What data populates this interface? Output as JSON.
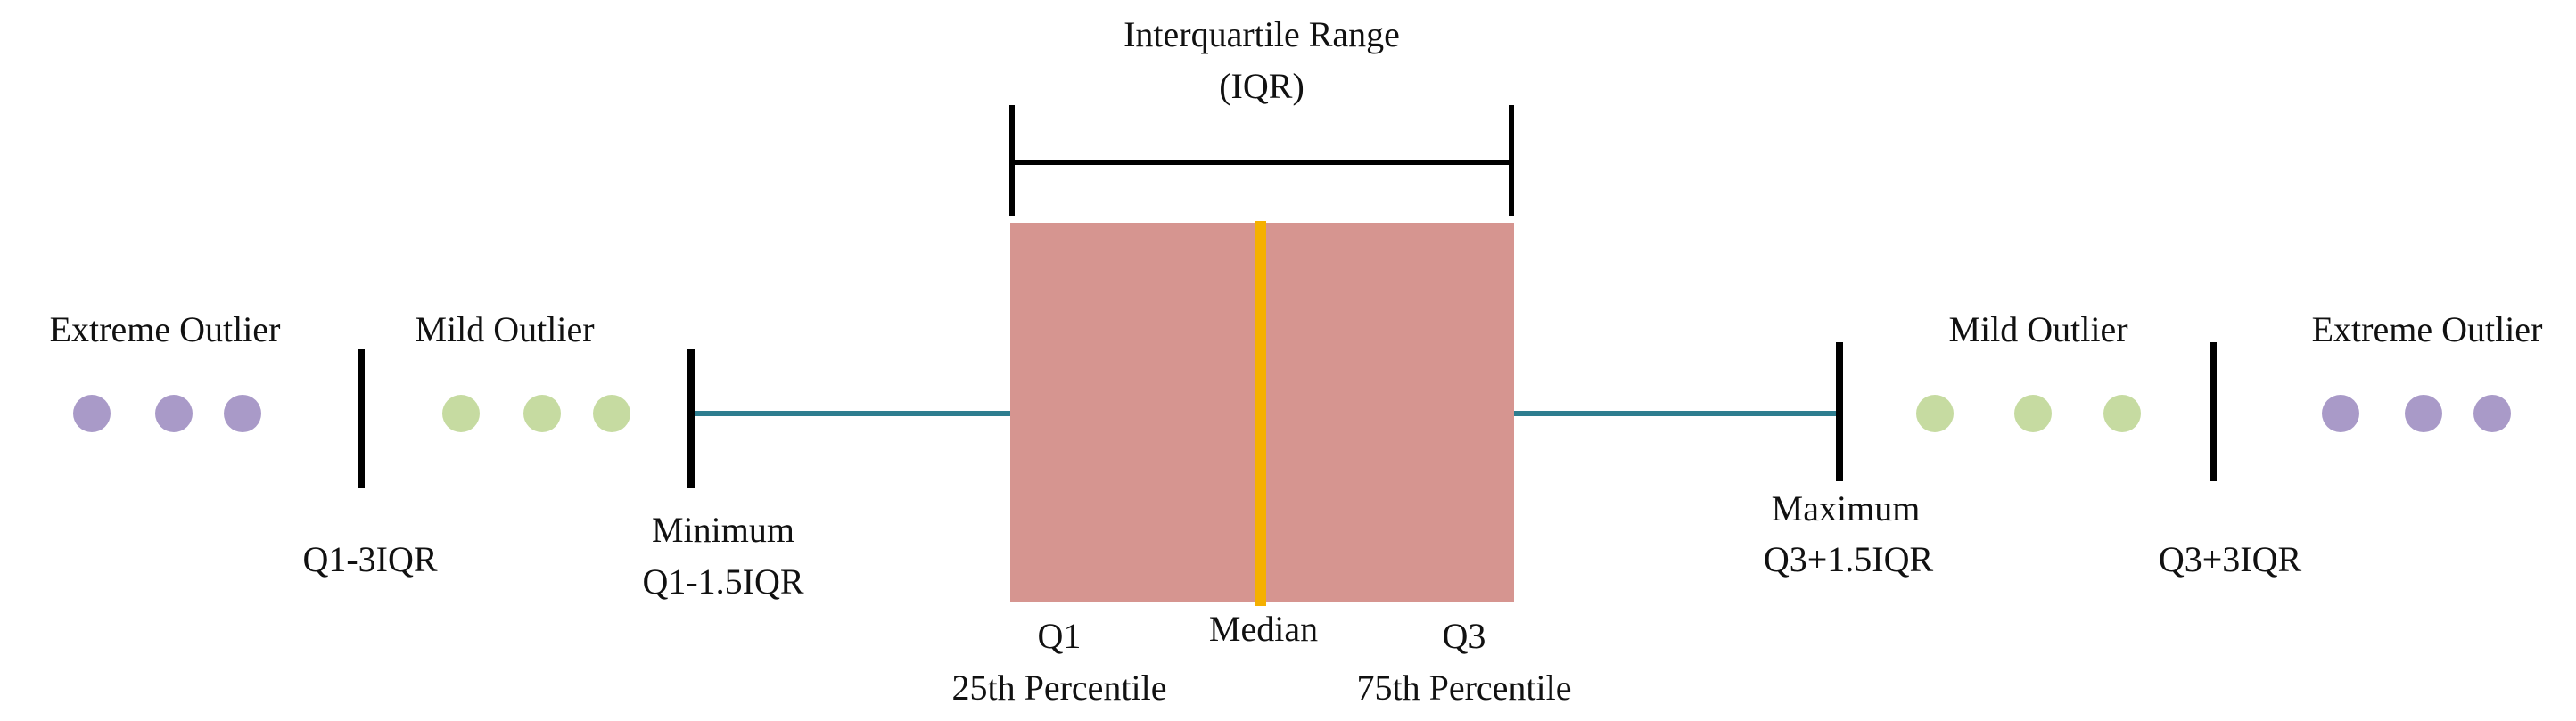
{
  "iqr": {
    "line1": "Interquartile Range",
    "line2": "(IQR)"
  },
  "box": {
    "q1": "Q1",
    "q1_sub": "25th Percentile",
    "median": "Median",
    "q3": "Q3",
    "q3_sub": "75th Percentile"
  },
  "left": {
    "extreme_outlier": "Extreme Outlier",
    "mild_outlier": "Mild Outlier",
    "fence_outer": "Q1-3IQR",
    "minimum": "Minimum",
    "minimum_formula": "Q1-1.5IQR"
  },
  "right": {
    "maximum": "Maximum",
    "maximum_formula": "Q3+1.5IQR",
    "fence_outer": "Q3+3IQR",
    "mild_outlier": "Mild Outlier",
    "extreme_outlier": "Extreme Outlier"
  },
  "colors": {
    "box_fill": "#D69590",
    "median_line": "#F5B000",
    "whisker": "#2E7D8F",
    "extreme_dot": "#A99AC8",
    "mild_dot": "#C6DBA1",
    "marker": "#000000"
  }
}
